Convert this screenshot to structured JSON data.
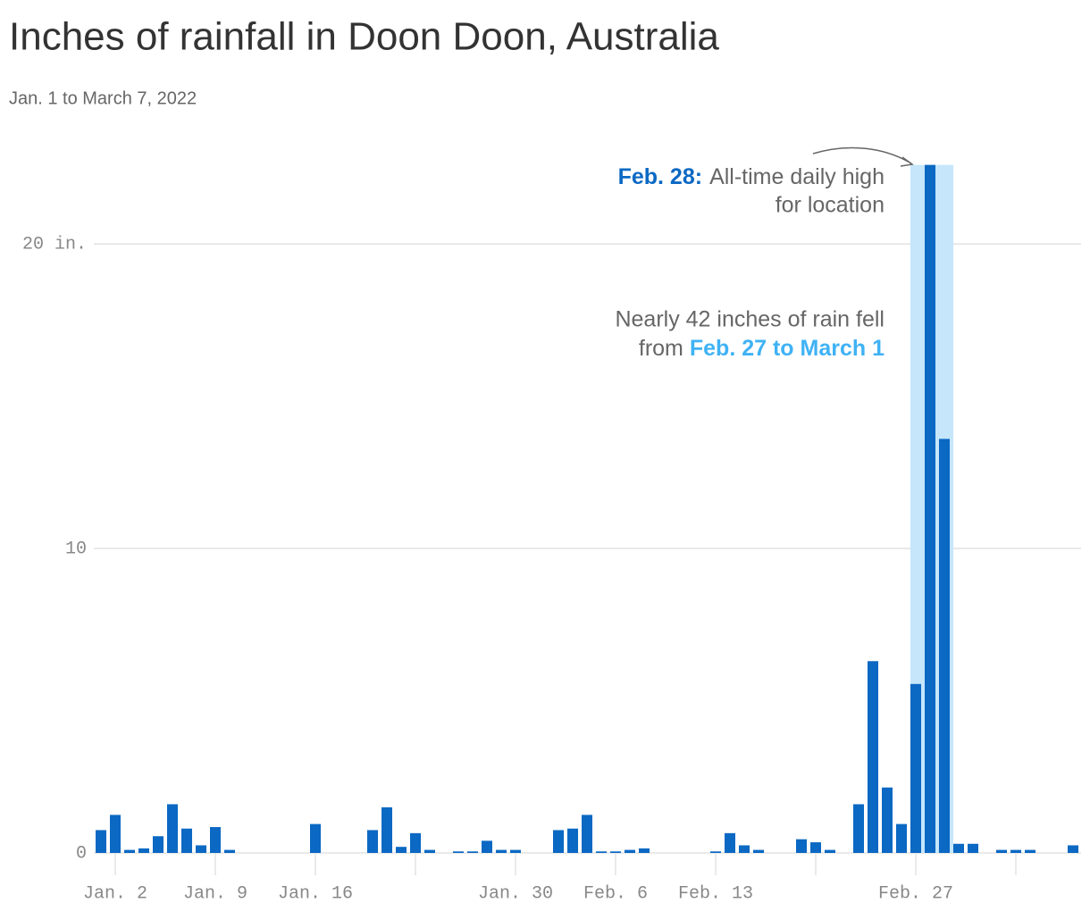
{
  "chart_data": {
    "type": "bar",
    "title": "Inches of rainfall in Doon Doon, Australia",
    "subtitle": "Jan. 1 to March 7, 2022",
    "color": "#0b68c3",
    "categories": [
      null,
      "Jan. 2",
      null,
      null,
      null,
      null,
      null,
      null,
      "Jan. 9",
      null,
      null,
      null,
      null,
      null,
      null,
      "Jan. 16",
      null,
      null,
      null,
      null,
      null,
      null,
      null,
      null,
      null,
      null,
      null,
      null,
      null,
      "Jan. 30",
      null,
      null,
      null,
      null,
      null,
      null,
      "Feb. 6",
      null,
      null,
      null,
      null,
      null,
      null,
      "Feb. 13",
      null,
      null,
      null,
      null,
      null,
      null,
      null,
      null,
      null,
      null,
      null,
      null,
      null,
      "Feb. 27",
      null,
      null,
      null,
      null,
      null,
      null,
      null,
      null,
      null,
      null,
      null
    ],
    "values": [
      0.75,
      1.25,
      0.1,
      0.15,
      0.55,
      1.6,
      0.8,
      0.25,
      0.85,
      0.1,
      0,
      0,
      0,
      0,
      0,
      0.95,
      0,
      0,
      0,
      0.75,
      1.5,
      0.2,
      0.65,
      0.1,
      0,
      0.05,
      0.05,
      0.4,
      0.1,
      0.1,
      0,
      0,
      0.75,
      0.8,
      1.25,
      0.05,
      0.05,
      0.1,
      0.15,
      0,
      0,
      0,
      0,
      0.05,
      0.65,
      0.25,
      0.1,
      0,
      0,
      0.45,
      0.35,
      0.1,
      0,
      1.6,
      6.3,
      2.15,
      0.95,
      5.55,
      22.6,
      13.6,
      0.3,
      0.3,
      0,
      0.1,
      0.1,
      0.1,
      0,
      0,
      0.25
    ],
    "ylim": [
      0,
      23
    ],
    "yticks": [
      0,
      10,
      {
        "value": 20,
        "label": "20 in."
      }
    ],
    "grid": true,
    "highlight": {
      "from": 57,
      "to": 59,
      "color": "#c5e6fb"
    },
    "annotations": [
      {
        "label": "Feb. 28:",
        "lines": [
          "All-time daily high",
          "for location"
        ],
        "color": "#0b68c3"
      },
      {
        "lines": [
          "Nearly 42 inches of rain fell",
          "from"
        ],
        "label": "Feb. 27 to March 1",
        "color": "#3fb2f5"
      }
    ]
  }
}
